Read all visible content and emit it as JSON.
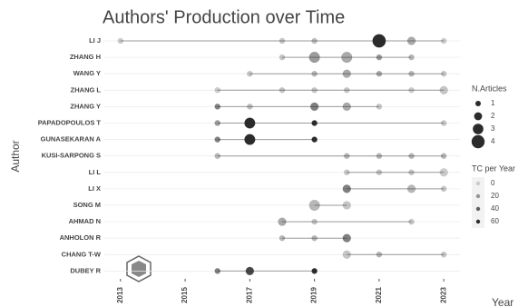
{
  "chart_data": {
    "type": "scatter",
    "title": "Authors' Production over Time",
    "x_label": "Year",
    "y_label": "Author",
    "xlim": [
      2012.5,
      2023.5
    ],
    "xticks": [
      2013,
      2015,
      2017,
      2019,
      2021,
      2023
    ],
    "point_color": "#2b2b2b",
    "line_color": "#9a9a9a",
    "rows": [
      {
        "author": "LI J",
        "years": [
          2013,
          2018,
          2019,
          2021,
          2022,
          2023
        ],
        "articles": [
          1,
          1,
          1,
          4,
          2,
          1
        ],
        "tc_per_year": [
          3,
          5,
          8,
          60,
          15,
          3
        ]
      },
      {
        "author": "ZHANG H",
        "years": [
          2018,
          2019,
          2020,
          2021,
          2022
        ],
        "articles": [
          1,
          3,
          3,
          1,
          1
        ],
        "tc_per_year": [
          5,
          20,
          15,
          20,
          10
        ]
      },
      {
        "author": "WANG Y",
        "years": [
          2017,
          2019,
          2020,
          2021,
          2022,
          2023
        ],
        "articles": [
          1,
          1,
          2,
          1,
          1,
          1
        ],
        "tc_per_year": [
          5,
          10,
          15,
          15,
          10,
          5
        ]
      },
      {
        "author": "ZHANG L",
        "years": [
          2016,
          2018,
          2019,
          2020,
          2022,
          2023
        ],
        "articles": [
          1,
          1,
          1,
          1,
          1,
          2
        ],
        "tc_per_year": [
          3,
          5,
          5,
          5,
          3,
          5
        ]
      },
      {
        "author": "ZHANG Y",
        "years": [
          2016,
          2017,
          2019,
          2020,
          2021
        ],
        "articles": [
          1,
          1,
          2,
          2,
          1
        ],
        "tc_per_year": [
          30,
          8,
          30,
          15,
          5
        ]
      },
      {
        "author": "PAPADOPOULOS T",
        "years": [
          2016,
          2017,
          2019,
          2023
        ],
        "articles": [
          1,
          3,
          1,
          1
        ],
        "tc_per_year": [
          20,
          60,
          60,
          5
        ]
      },
      {
        "author": "GUNASEKARAN A",
        "years": [
          2016,
          2017,
          2019
        ],
        "articles": [
          1,
          3,
          1
        ],
        "tc_per_year": [
          30,
          60,
          60
        ]
      },
      {
        "author": "KUSI-SARPONG S",
        "years": [
          2016,
          2020,
          2021,
          2022,
          2023
        ],
        "articles": [
          1,
          1,
          1,
          1,
          1
        ],
        "tc_per_year": [
          10,
          10,
          10,
          10,
          10
        ]
      },
      {
        "author": "LI L",
        "years": [
          2020,
          2021,
          2022,
          2023
        ],
        "articles": [
          1,
          1,
          1,
          2
        ],
        "tc_per_year": [
          5,
          5,
          5,
          3
        ]
      },
      {
        "author": "LI X",
        "years": [
          2020,
          2022,
          2023
        ],
        "articles": [
          2,
          2,
          1
        ],
        "tc_per_year": [
          30,
          10,
          5
        ]
      },
      {
        "author": "SONG M",
        "years": [
          2019,
          2020
        ],
        "articles": [
          3,
          2
        ],
        "tc_per_year": [
          10,
          5
        ]
      },
      {
        "author": "AHMAD N",
        "years": [
          2018,
          2019,
          2022
        ],
        "articles": [
          2,
          1,
          1
        ],
        "tc_per_year": [
          15,
          5,
          5
        ]
      },
      {
        "author": "ANHOLON R",
        "years": [
          2018,
          2019,
          2020
        ],
        "articles": [
          1,
          1,
          2
        ],
        "tc_per_year": [
          10,
          10,
          30
        ]
      },
      {
        "author": "CHANG T-W",
        "years": [
          2020,
          2021,
          2023
        ],
        "articles": [
          2,
          1,
          1
        ],
        "tc_per_year": [
          5,
          10,
          5
        ]
      },
      {
        "author": "DUBEY R",
        "years": [
          2016,
          2017,
          2019
        ],
        "articles": [
          1,
          2,
          1
        ],
        "tc_per_year": [
          30,
          50,
          60
        ]
      }
    ],
    "size_legend": {
      "title": "N.Articles",
      "values": [
        1,
        2,
        3,
        4
      ]
    },
    "alpha_legend": {
      "title": "TC per Year",
      "values": [
        0,
        20,
        40,
        60
      ]
    }
  }
}
